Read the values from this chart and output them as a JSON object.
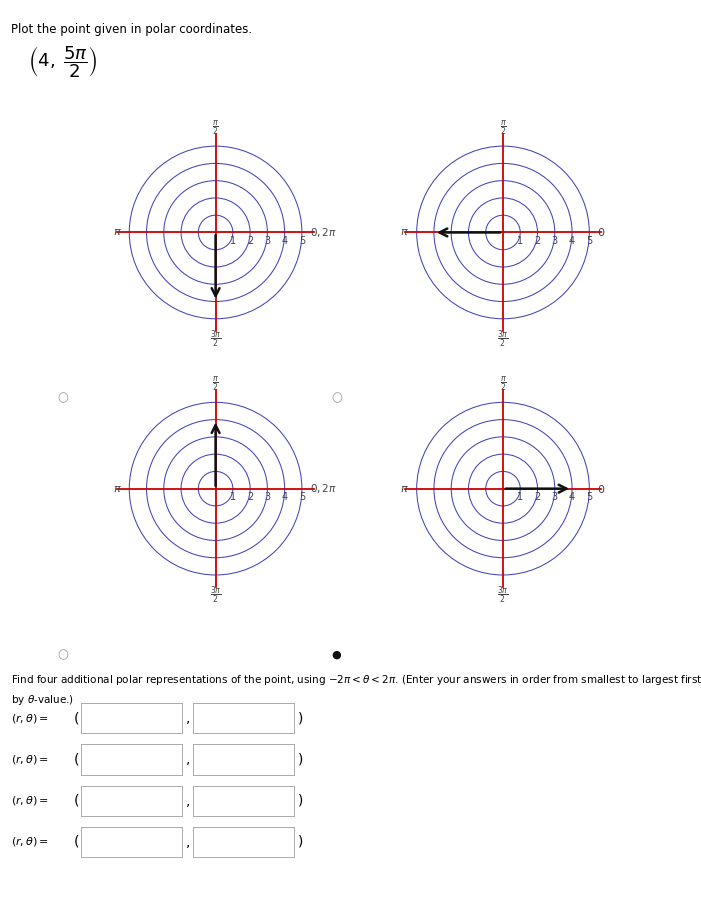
{
  "title": "Plot the point given in polar coordinates.",
  "num_circles": 5,
  "max_r": 5,
  "bg_color": "#ffffff",
  "circle_color": "#4444bb",
  "axis_color": "#cc0000",
  "arrow_color": "#111111",
  "text_color": "#444444",
  "plot_configs": [
    {
      "arrow_theta_deg": 270,
      "right_label": "0, 2\\pi"
    },
    {
      "arrow_theta_deg": 180,
      "right_label": "0"
    },
    {
      "arrow_theta_deg": 90,
      "right_label": "0, 2\\pi"
    },
    {
      "arrow_theta_deg": 0,
      "right_label": "0"
    }
  ],
  "radio_dots": [
    {
      "filled": false
    },
    {
      "filled": false
    },
    {
      "filled": false
    },
    {
      "filled": true
    }
  ],
  "fontsize_title": 8.5,
  "fontsize_label": 7.5,
  "fontsize_tick": 7,
  "fontsize_point": 13,
  "arrow_r": 4
}
